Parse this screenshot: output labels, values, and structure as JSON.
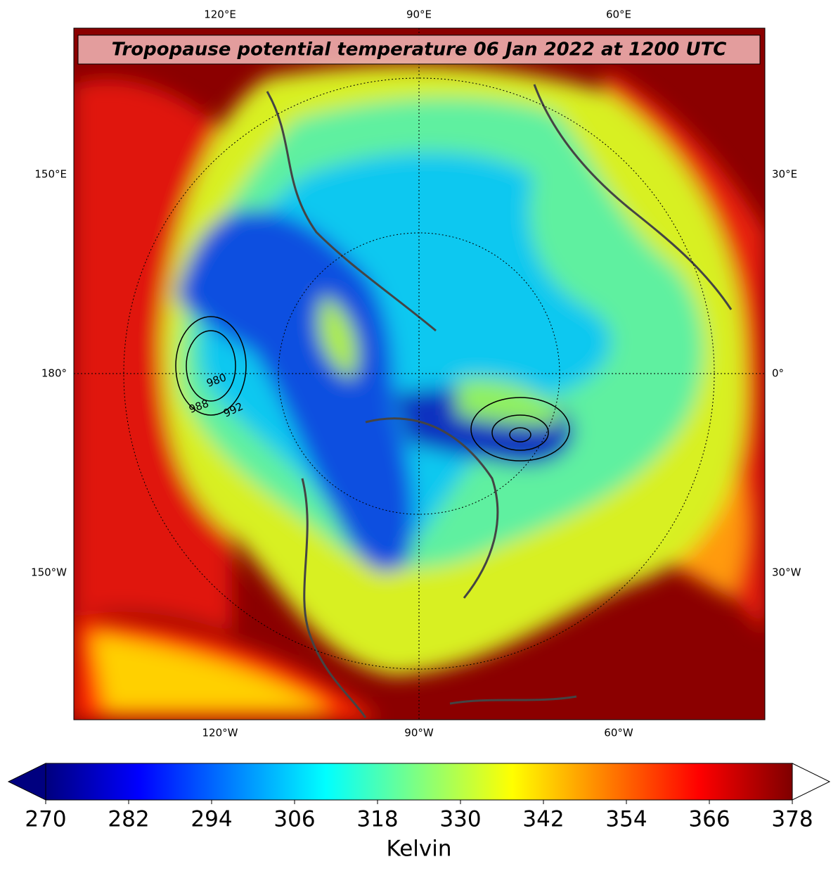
{
  "title": "Tropopause potential temperature 06 Jan 2022 at 1200 UTC",
  "map": {
    "top_labels": [
      "120°E",
      "90°E",
      "60°E"
    ],
    "bottom_labels": [
      "120°W",
      "90°W",
      "60°W"
    ],
    "left_labels": [
      "150°E",
      "180°",
      "150°W"
    ],
    "right_labels": [
      "30°E",
      "0°",
      "30°W"
    ],
    "contour_labels": [
      "980",
      "988",
      "992"
    ]
  },
  "colorbar": {
    "label": "Kelvin",
    "lim": [
      270,
      378
    ],
    "ticks": [
      270,
      282,
      294,
      306,
      318,
      330,
      342,
      354,
      366,
      378
    ],
    "colors": [
      "#00007f",
      "#0000ff",
      "#0080ff",
      "#00ffff",
      "#80ff80",
      "#ffff00",
      "#ff8000",
      "#ff0000",
      "#7f0000"
    ],
    "under_color": "#00007f",
    "over_color": "#ffffff"
  }
}
